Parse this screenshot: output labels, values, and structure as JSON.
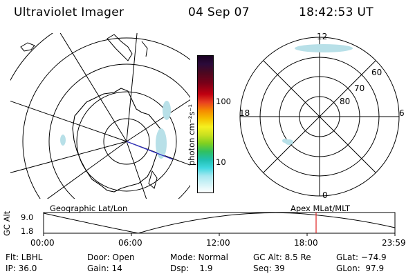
{
  "header": {
    "instrument": "Ultraviolet Imager",
    "date": "04 Sep 07",
    "time": "18:42:53 UT"
  },
  "colorbar": {
    "unit_label": "photon cm⁻²s⁻¹",
    "ticks": [
      "100",
      "10"
    ]
  },
  "left_panel": {
    "caption": "Geographic Lat/Lon"
  },
  "right_panel": {
    "caption": "Apex  MLat/MLT",
    "mlt_labels": {
      "top": "12",
      "left": "18",
      "right": "6",
      "bottom": "0"
    },
    "mlat_labels": [
      "60",
      "70",
      "80"
    ]
  },
  "altitude_plot": {
    "ylabel": "GC Alt",
    "yticks": [
      "9.0",
      "1.8"
    ],
    "xticks": [
      "00:00",
      "06:00",
      "12:00",
      "18:00",
      "23:59"
    ],
    "marker_time": "18:42"
  },
  "status": {
    "filter": "Flt: LBHL",
    "ip": "IP: 36.0",
    "door": "Door: Open",
    "gain": "Gain: 14",
    "mode": "Mode: Normal",
    "dsp": "Dsp:    1.9",
    "gc_alt": "GC Alt: 8.5 Re",
    "seq": "Seq: 39",
    "glat": "GLat: −74.9",
    "glon": "GLon:  97.9"
  },
  "colors": {
    "marker": "#e02020",
    "orbit_line": "#3030c0",
    "aurora": "#b8e0e8"
  }
}
